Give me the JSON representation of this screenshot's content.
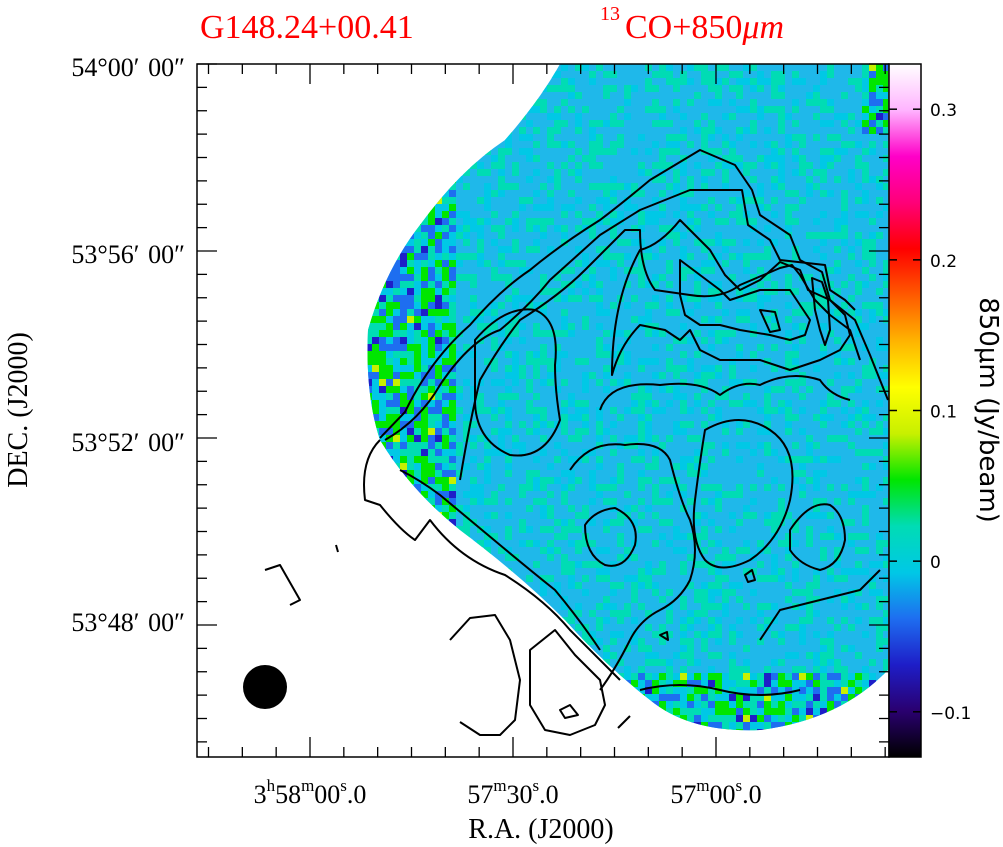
{
  "figure": {
    "source_label": "G148.24+00.41",
    "map_label_sup": "13",
    "map_label": "CO+850",
    "map_label_unit": "μm",
    "title_color": "#ff0000"
  },
  "chart_data": {
    "type": "heatmap",
    "title": "G148.24+00.41",
    "subtitle": "13CO+850μm",
    "xlabel": "R.A. (J2000)",
    "ylabel": "DEC. (J2000)",
    "x_ticks": [
      {
        "h": "3",
        "m": "58",
        "s": "00",
        "frac": ".0",
        "ra_sec_offset": 0
      },
      {
        "h": "",
        "m": "57",
        "s": "30",
        "frac": ".0",
        "ra_sec_offset": -30
      },
      {
        "h": "",
        "m": "57",
        "s": "00",
        "frac": ".0",
        "ra_sec_offset": -60
      }
    ],
    "y_ticks": [
      {
        "label": "54°00′ 00″",
        "dec_arcmin": 0
      },
      {
        "label": "53°56′ 00″",
        "dec_arcmin": -4
      },
      {
        "label": "53°52′ 00″",
        "dec_arcmin": -8
      },
      {
        "label": "53°48′ 00″",
        "dec_arcmin": -12
      }
    ],
    "colorbar": {
      "label": "850μm (Jy/beam)",
      "range": [
        -0.13,
        0.33
      ],
      "ticks": [
        {
          "value": 0.3,
          "label": "0.3"
        },
        {
          "value": 0.2,
          "label": "0.2"
        },
        {
          "value": 0.1,
          "label": "0.1"
        },
        {
          "value": 0,
          "label": "0"
        },
        {
          "value": -0.1,
          "label": "−0.1"
        }
      ],
      "colormap": [
        "#000000",
        "#2a0070",
        "#1e1ec8",
        "#1e6ef0",
        "#00c8e6",
        "#00dcb4",
        "#00e600",
        "#c8f000",
        "#ffff00",
        "#ffb400",
        "#ff5a00",
        "#ff0000",
        "#ff0078",
        "#ff00c8",
        "#ffb4ff",
        "#ffffff"
      ]
    },
    "emission_typical_value": 0.0,
    "beam": "filled circle, lower-left corner",
    "contours": "black 13CO contours",
    "grid": false
  }
}
